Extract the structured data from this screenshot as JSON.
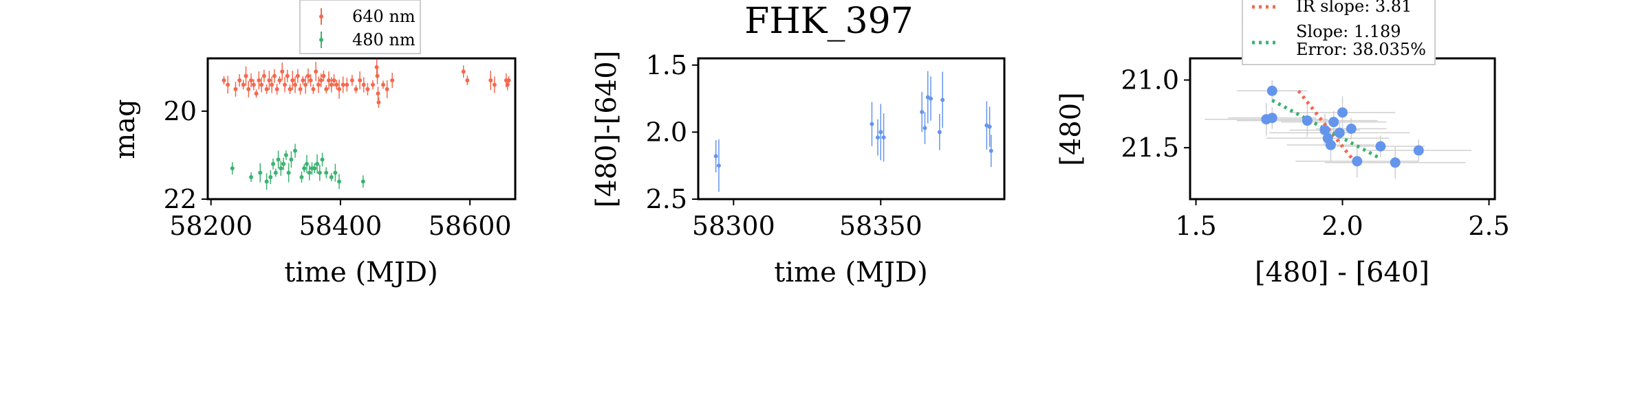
{
  "title": "FHK_397",
  "colors": {
    "red": "#f4684d",
    "green": "#3cb371",
    "blue": "#6495ed",
    "grey": "#cfcfcf"
  },
  "chart_data": [
    {
      "type": "scatter",
      "panel": "light-curve",
      "xlabel": "time (MJD)",
      "ylabel": "mag",
      "xlim": [
        58195,
        58670
      ],
      "ylim": [
        22,
        18.8
      ],
      "y_inverted": true,
      "xticks": [
        58200,
        58400,
        58600
      ],
      "yticks": [
        20,
        22
      ],
      "legend": {
        "placement": "top-center",
        "entries": [
          "640 nm",
          "480 nm"
        ]
      },
      "series": [
        {
          "name": "640 nm",
          "color": "#f4684d",
          "points": [
            [
              58220,
              19.3
            ],
            [
              58226,
              19.4
            ],
            [
              58238,
              19.5
            ],
            [
              58244,
              19.3
            ],
            [
              58250,
              19.4
            ],
            [
              58254,
              19.2
            ],
            [
              58258,
              19.5
            ],
            [
              58262,
              19.3
            ],
            [
              58266,
              19.4
            ],
            [
              58270,
              19.6
            ],
            [
              58274,
              19.3
            ],
            [
              58278,
              19.4
            ],
            [
              58282,
              19.2
            ],
            [
              58286,
              19.5
            ],
            [
              58290,
              19.3
            ],
            [
              58294,
              19.4
            ],
            [
              58298,
              19.2
            ],
            [
              58302,
              19.5
            ],
            [
              58306,
              19.3
            ],
            [
              58310,
              19.1
            ],
            [
              58314,
              19.4
            ],
            [
              58318,
              19.2
            ],
            [
              58322,
              19.5
            ],
            [
              58326,
              19.3
            ],
            [
              58330,
              19.4
            ],
            [
              58334,
              19.2
            ],
            [
              58338,
              19.5
            ],
            [
              58342,
              19.3
            ],
            [
              58346,
              19.4
            ],
            [
              58350,
              19.2
            ],
            [
              58354,
              19.3
            ],
            [
              58358,
              19.5
            ],
            [
              58362,
              19.1
            ],
            [
              58366,
              19.4
            ],
            [
              58370,
              19.3
            ],
            [
              58374,
              19.2
            ],
            [
              58378,
              19.5
            ],
            [
              58382,
              19.3
            ],
            [
              58386,
              19.4
            ],
            [
              58390,
              19.3
            ],
            [
              58394,
              19.4
            ],
            [
              58398,
              19.5
            ],
            [
              58404,
              19.4
            ],
            [
              58410,
              19.4
            ],
            [
              58418,
              19.3
            ],
            [
              58424,
              19.5
            ],
            [
              58430,
              19.3
            ],
            [
              58436,
              19.4
            ],
            [
              58442,
              19.5
            ],
            [
              58450,
              19.4
            ],
            [
              58456,
              19.0
            ],
            [
              58457,
              19.2
            ],
            [
              58458,
              19.6
            ],
            [
              58459,
              19.8
            ],
            [
              58466,
              19.4
            ],
            [
              58472,
              19.5
            ],
            [
              58480,
              19.3
            ],
            [
              58590,
              19.1
            ],
            [
              58596,
              19.3
            ],
            [
              58632,
              19.3
            ],
            [
              58638,
              19.4
            ],
            [
              58656,
              19.3
            ],
            [
              58658,
              19.4
            ],
            [
              58660,
              19.3
            ]
          ]
        },
        {
          "name": "480 nm",
          "color": "#3cb371",
          "points": [
            [
              58233,
              21.3
            ],
            [
              58262,
              21.5
            ],
            [
              58276,
              21.4
            ],
            [
              58286,
              21.6
            ],
            [
              58292,
              21.5
            ],
            [
              58296,
              21.2
            ],
            [
              58300,
              21.4
            ],
            [
              58304,
              21.1
            ],
            [
              58308,
              21.3
            ],
            [
              58312,
              21.2
            ],
            [
              58316,
              21.0
            ],
            [
              58320,
              21.4
            ],
            [
              58324,
              21.1
            ],
            [
              58330,
              20.9
            ],
            [
              58340,
              21.5
            ],
            [
              58344,
              21.3
            ],
            [
              58348,
              21.2
            ],
            [
              58352,
              21.4
            ],
            [
              58356,
              21.3
            ],
            [
              58360,
              21.3
            ],
            [
              58364,
              21.2
            ],
            [
              58368,
              21.4
            ],
            [
              58372,
              21.1
            ],
            [
              58378,
              21.4
            ],
            [
              58386,
              21.5
            ],
            [
              58392,
              21.4
            ],
            [
              58398,
              21.6
            ],
            [
              58435,
              21.6
            ]
          ]
        }
      ]
    },
    {
      "type": "scatter",
      "panel": "color-curve",
      "title": "FHK_397",
      "xlabel": "time (MJD)",
      "ylabel": "[480]-[640]",
      "xlim": [
        58288,
        58392
      ],
      "ylim": [
        2.5,
        1.45
      ],
      "y_inverted": true,
      "xticks": [
        58300,
        58350
      ],
      "yticks": [
        1.5,
        2.0,
        2.5
      ],
      "series": [
        {
          "color": "#6495ed",
          "points": [
            [
              58294,
              2.18
            ],
            [
              58295,
              2.25
            ],
            [
              58347,
              1.94
            ],
            [
              58349,
              2.04
            ],
            [
              58350,
              2.0
            ],
            [
              58351,
              2.04
            ],
            [
              58364,
              1.85
            ],
            [
              58365,
              1.97
            ],
            [
              58366,
              1.74
            ],
            [
              58367,
              1.75
            ],
            [
              58370,
              2.0
            ],
            [
              58371,
              1.76
            ],
            [
              58386,
              1.95
            ],
            [
              58387,
              1.96
            ],
            [
              58387.5,
              2.14
            ]
          ]
        }
      ]
    },
    {
      "type": "scatter",
      "panel": "color-magnitude",
      "xlabel": "[480] - [640]",
      "ylabel": "[480]",
      "xlim": [
        1.48,
        2.52
      ],
      "ylim": [
        21.88,
        20.84
      ],
      "y_inverted": true,
      "xticks": [
        1.5,
        2.0,
        2.5
      ],
      "yticks": [
        21.0,
        21.5
      ],
      "legend": {
        "placement": "top-center",
        "entries": [
          "IR slope: 3.81",
          "Slope: 1.189\nError: 38.035%"
        ]
      },
      "series": [
        {
          "color": "#6495ed",
          "points": [
            [
              1.76,
              21.08
            ],
            [
              1.74,
              21.29
            ],
            [
              1.76,
              21.28
            ],
            [
              1.88,
              21.3
            ],
            [
              1.97,
              21.31
            ],
            [
              1.94,
              21.37
            ],
            [
              1.95,
              21.43
            ],
            [
              1.96,
              21.48
            ],
            [
              1.99,
              21.39
            ],
            [
              2.0,
              21.24
            ],
            [
              2.03,
              21.36
            ],
            [
              2.05,
              21.6
            ],
            [
              2.13,
              21.49
            ],
            [
              2.18,
              21.61
            ],
            [
              2.26,
              21.52
            ]
          ]
        }
      ],
      "lines": [
        {
          "name": "IR slope: 3.81",
          "color": "#f4684d",
          "style": "dotted",
          "x": [
            1.85,
            2.04
          ],
          "y": [
            21.08,
            21.6
          ]
        },
        {
          "name": "Slope: 1.189\nError: 38.035%",
          "color": "#3cb371",
          "style": "dotted",
          "x": [
            1.76,
            2.13
          ],
          "y": [
            21.15,
            21.58
          ]
        }
      ]
    }
  ]
}
